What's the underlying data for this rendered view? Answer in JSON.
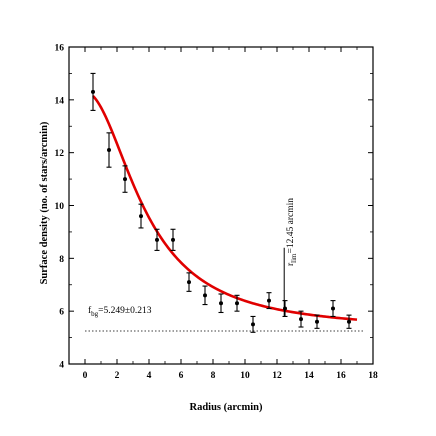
{
  "chart_data": {
    "type": "scatter",
    "xlabel": "Radius (arcmin)",
    "ylabel": "Surface density (no. of stars/arcmin)",
    "xlim": [
      -1,
      18
    ],
    "ylim": [
      4,
      16
    ],
    "xticks": [
      0,
      2,
      4,
      6,
      8,
      10,
      12,
      14,
      16,
      18
    ],
    "yticks": [
      4,
      6,
      8,
      10,
      12,
      14,
      16
    ],
    "x_tick_labels": [
      "0",
      "2",
      "4",
      "6",
      "8",
      "10",
      "12",
      "14",
      "16",
      "18"
    ],
    "y_tick_labels": [
      "4",
      "6",
      "8",
      "10",
      "12",
      "14",
      "16"
    ],
    "points": [
      {
        "x": 0.5,
        "y": 14.3,
        "err": 0.7
      },
      {
        "x": 1.5,
        "y": 12.1,
        "err": 0.65
      },
      {
        "x": 2.5,
        "y": 11.0,
        "err": 0.5
      },
      {
        "x": 3.5,
        "y": 9.6,
        "err": 0.45
      },
      {
        "x": 4.5,
        "y": 8.7,
        "err": 0.4
      },
      {
        "x": 5.5,
        "y": 8.7,
        "err": 0.4
      },
      {
        "x": 6.5,
        "y": 7.1,
        "err": 0.35
      },
      {
        "x": 7.5,
        "y": 6.6,
        "err": 0.35
      },
      {
        "x": 8.5,
        "y": 6.3,
        "err": 0.35
      },
      {
        "x": 9.5,
        "y": 6.3,
        "err": 0.3
      },
      {
        "x": 10.5,
        "y": 5.5,
        "err": 0.3
      },
      {
        "x": 11.5,
        "y": 6.4,
        "err": 0.3
      },
      {
        "x": 12.5,
        "y": 6.1,
        "err": 0.3
      },
      {
        "x": 13.5,
        "y": 5.7,
        "err": 0.3
      },
      {
        "x": 14.5,
        "y": 5.6,
        "err": 0.25
      },
      {
        "x": 15.5,
        "y": 6.1,
        "err": 0.3
      },
      {
        "x": 16.5,
        "y": 5.6,
        "err": 0.25
      }
    ],
    "fit": {
      "model": "King profile",
      "f_bg": 5.249,
      "f_0": 9.05,
      "r_c": 3.8,
      "x_range": [
        0.5,
        17
      ],
      "color": "#e00000"
    },
    "background_line": {
      "y": 5.249,
      "style": "dotted"
    },
    "annotations": {
      "fbg_text": "f",
      "fbg_sub": "bg",
      "fbg_value": "=5.249±0.213",
      "rlim_text": "r",
      "rlim_sub": "lim",
      "rlim_value": "=12.45 arcmin",
      "rlim_x": 12.45
    },
    "grid": false,
    "legend": "none"
  }
}
